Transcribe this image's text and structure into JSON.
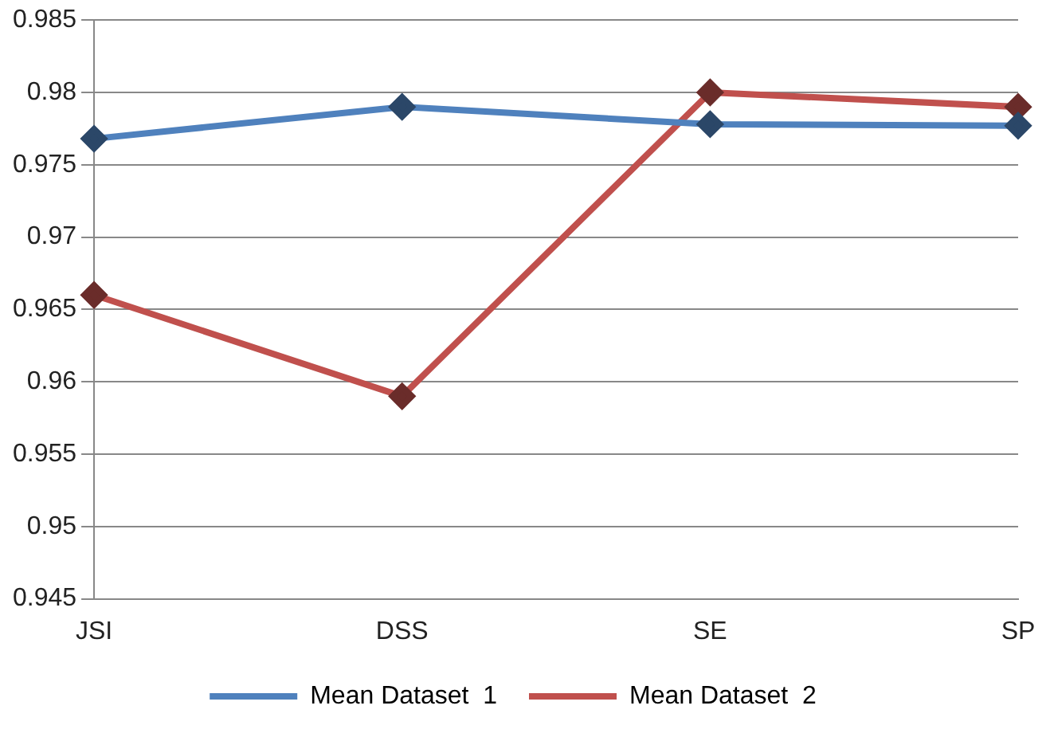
{
  "chart_data": {
    "type": "line",
    "categories": [
      "JSI",
      "DSS",
      "SE",
      "SP"
    ],
    "series": [
      {
        "name": "Mean Dataset  1",
        "color": "#4f81bd",
        "values": [
          0.9768,
          0.979,
          0.9778,
          0.9777
        ]
      },
      {
        "name": "Mean Dataset  2",
        "color": "#c0504d",
        "values": [
          0.966,
          0.959,
          0.98,
          0.979
        ]
      }
    ],
    "ylim": [
      0.945,
      0.985
    ],
    "yticks": [
      0.945,
      0.95,
      0.955,
      0.96,
      0.965,
      0.97,
      0.975,
      0.98,
      0.985
    ],
    "grid": "y",
    "legend": "bottom",
    "marker": "diamond",
    "line_style": "solid"
  }
}
